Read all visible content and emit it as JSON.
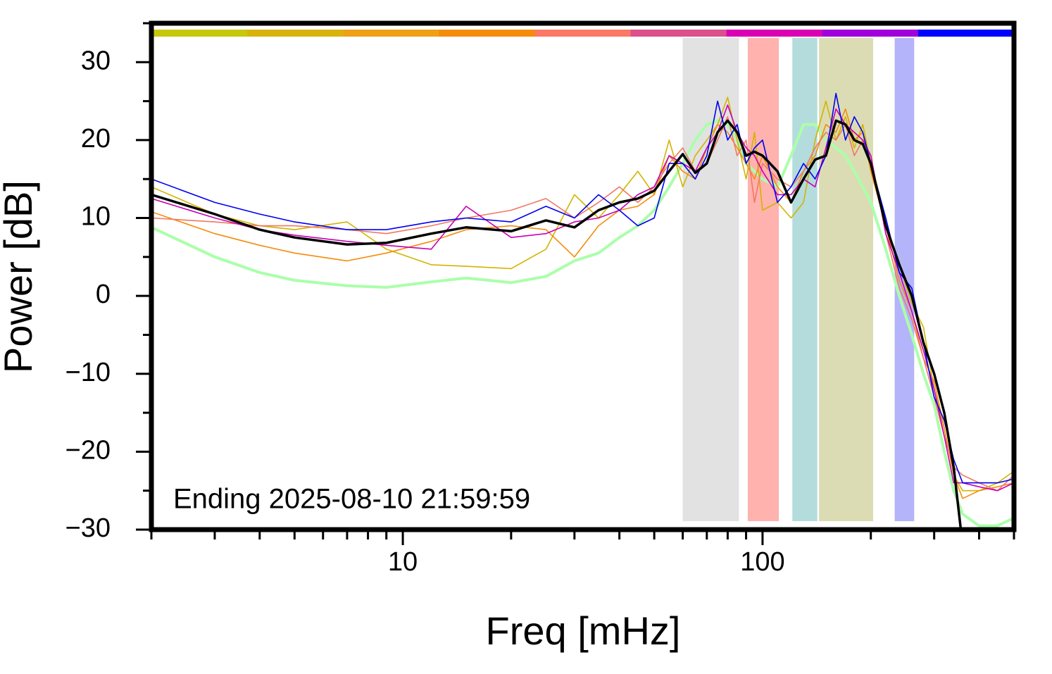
{
  "chart_data": {
    "type": "line",
    "x_label": "Freq [mHz]",
    "y_label": "Power [dB]",
    "annotation": "Ending 2025-08-10 21:59:59",
    "log_x": true,
    "xlim": [
      2,
      500
    ],
    "ylim": [
      -30,
      35
    ],
    "xticks": [
      10,
      100
    ],
    "xminor_ticks": [
      2,
      3,
      4,
      5,
      6,
      7,
      8,
      9,
      20,
      30,
      40,
      50,
      60,
      70,
      80,
      90,
      200,
      300,
      400,
      500
    ],
    "yticks": [
      {
        "value": -30,
        "label": "−30"
      },
      {
        "value": -20,
        "label": "−20"
      },
      {
        "value": -10,
        "label": "−10"
      },
      0,
      10,
      20,
      30
    ],
    "yminor_ticks": [
      -25,
      -15,
      -5,
      5,
      15,
      25,
      35
    ],
    "top_bar_colors": [
      "#c8c80a",
      "#d8b40a",
      "#f0a014",
      "#f58c0a",
      "#fa7864",
      "#dc508c",
      "#dc00b4",
      "#a000dc",
      "#0000ff"
    ],
    "bands": [
      {
        "xlim": [
          60,
          86
        ],
        "color": "#e2e2e2"
      },
      {
        "xlim": [
          91,
          111
        ],
        "color": "#ffb2ae"
      },
      {
        "xlim": [
          121,
          142
        ],
        "color": "#b4dcdc"
      },
      {
        "xlim": [
          143.5,
          203
        ],
        "color": "#dcdcb4"
      },
      {
        "xlim": [
          233,
          264
        ],
        "color": "#b4b4fa"
      }
    ],
    "x": [
      2,
      3,
      4,
      5,
      7,
      9,
      12,
      15,
      20,
      25,
      30,
      35,
      40,
      45,
      50,
      55,
      60,
      65,
      70,
      75,
      80,
      85,
      90,
      95,
      100,
      110,
      120,
      130,
      140,
      150,
      160,
      170,
      180,
      190,
      200,
      220,
      240,
      260,
      280,
      300,
      320,
      340,
      360,
      400,
      450,
      500
    ],
    "series": [
      {
        "color": "#aaffaa",
        "width": 4,
        "values": [
          8.8,
          5,
          3,
          2,
          1.3,
          1.1,
          1.8,
          2.3,
          1.7,
          2.5,
          4.5,
          5.5,
          7.5,
          9,
          11,
          14,
          17,
          20,
          22,
          22.5,
          22,
          20,
          17,
          16,
          15,
          14,
          18,
          22,
          22,
          20,
          19,
          18,
          16,
          14,
          12,
          6,
          0,
          -5,
          -10,
          -14,
          -20,
          -25,
          -28,
          -29.5,
          -29.5,
          -28.5
        ]
      },
      {
        "color": "#d2b400",
        "width": 1.6,
        "values": [
          14,
          10.5,
          9,
          8.5,
          9.5,
          6,
          4,
          3.8,
          3.5,
          6,
          13,
          10,
          13,
          16,
          13,
          20,
          14,
          18,
          20,
          22,
          25.5,
          20,
          15,
          21,
          11,
          12,
          10,
          12,
          20,
          25,
          20,
          23,
          19,
          22,
          17,
          9,
          4,
          -1,
          -4,
          -12,
          -17,
          -23,
          -25,
          -25,
          -24,
          -22.5
        ]
      },
      {
        "color": "#f58c0a",
        "width": 1.6,
        "values": [
          10.8,
          8,
          6.5,
          5.5,
          4.5,
          5.5,
          7,
          8.5,
          9,
          8.5,
          5,
          9,
          11,
          11.5,
          13,
          18,
          16,
          15,
          19,
          22,
          21,
          19,
          17,
          15,
          18,
          14,
          12,
          16,
          18,
          22,
          21,
          24,
          20,
          21,
          16,
          9,
          2,
          -2,
          -8,
          -11,
          -17,
          -23,
          -26,
          -25,
          -24.5,
          -24
        ]
      },
      {
        "color": "#f07864",
        "width": 1.6,
        "values": [
          10,
          9.5,
          9,
          9,
          8.5,
          8,
          9,
          10,
          11,
          12.5,
          10,
          12,
          14,
          12,
          14,
          17,
          19,
          16,
          17,
          20,
          23,
          18,
          20,
          12,
          17,
          15,
          14,
          16,
          19,
          21,
          20,
          22,
          18,
          20,
          18,
          8,
          1,
          -3,
          -8,
          -13,
          -18,
          -22,
          -23,
          -24,
          -25,
          -23
        ]
      },
      {
        "color": "#c800b4",
        "width": 1.6,
        "values": [
          12.5,
          10,
          8.5,
          7.8,
          7,
          6.5,
          6,
          11.5,
          7.5,
          8,
          9.5,
          10,
          11,
          13,
          14,
          18,
          17,
          16,
          19,
          21,
          24.5,
          21,
          19,
          18,
          16,
          13,
          13,
          15,
          14,
          19,
          24,
          22,
          21,
          20,
          18,
          8,
          3,
          -2,
          -7,
          -12,
          -18,
          -24,
          -24,
          -24.5,
          -25,
          -24
        ]
      },
      {
        "color": "#0000f0",
        "width": 1.6,
        "values": [
          15,
          12,
          10.5,
          9.5,
          8.5,
          8.5,
          9.5,
          10,
          9.5,
          11.5,
          10,
          13,
          11,
          9,
          10,
          17,
          17,
          15,
          18,
          25,
          20,
          22,
          17,
          19,
          20,
          12,
          14,
          17,
          15,
          18,
          26,
          20,
          23,
          21,
          17,
          10,
          3,
          1,
          -6,
          -13,
          -16,
          -21,
          -24,
          -24,
          -24,
          -23.5
        ]
      },
      {
        "color": "#000000",
        "width": 3.5,
        "values": [
          13,
          10.5,
          8.5,
          7.5,
          6.6,
          6.8,
          8,
          8.8,
          8.3,
          9.7,
          8.8,
          11,
          12,
          12.5,
          13.5,
          16,
          18.2,
          15.8,
          17,
          21,
          22.5,
          21,
          18,
          18.5,
          18,
          16,
          12,
          15,
          17.5,
          18,
          22.5,
          22,
          20,
          19.5,
          17,
          9,
          4,
          0,
          -6,
          -10,
          -15,
          -22,
          -32,
          null,
          null,
          null
        ]
      }
    ]
  }
}
